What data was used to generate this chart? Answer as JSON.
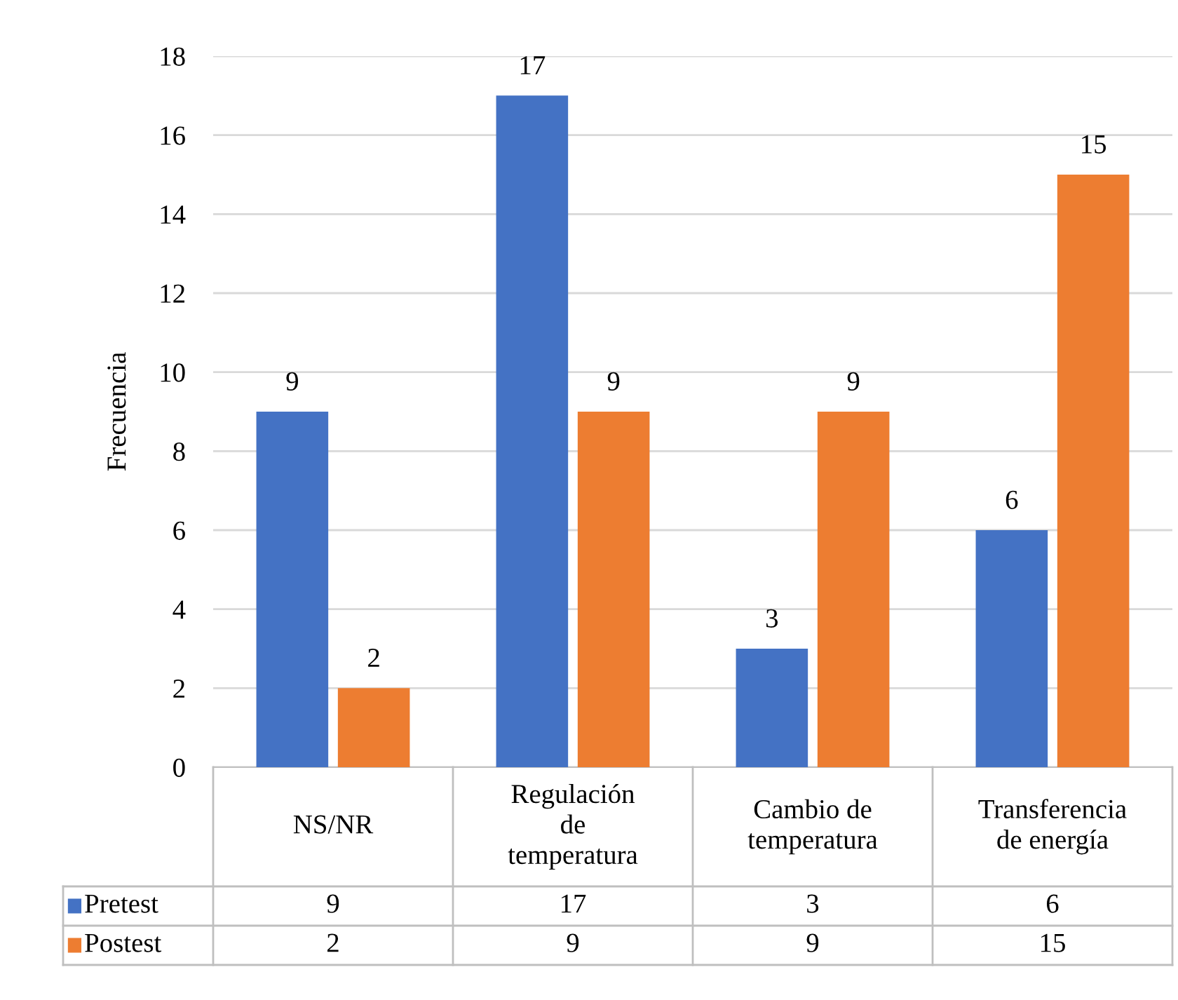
{
  "chart_data": {
    "type": "bar",
    "ylabel": "Frecuencia",
    "categories": [
      "NS/NR",
      "Regulación de temperatura",
      "Cambio de temperatura",
      "Transferencia de energía"
    ],
    "series": [
      {
        "name": "Pretest",
        "color": "#4472c4",
        "values": [
          9,
          17,
          3,
          6
        ],
        "value_labels": [
          "9",
          "17",
          "3",
          "6"
        ]
      },
      {
        "name": "Postest",
        "color": "#ed7d31",
        "values": [
          2,
          9,
          9,
          15
        ],
        "value_labels": [
          "2",
          "9",
          "9",
          "15"
        ]
      }
    ],
    "ylim": [
      0,
      18
    ],
    "yticks": [
      0,
      2,
      4,
      6,
      8,
      10,
      12,
      14,
      16,
      18
    ],
    "grid": "y",
    "annotations": [
      "9",
      "17",
      "3",
      "6",
      "2",
      "9",
      "9",
      "15"
    ],
    "legend": "bottom"
  }
}
